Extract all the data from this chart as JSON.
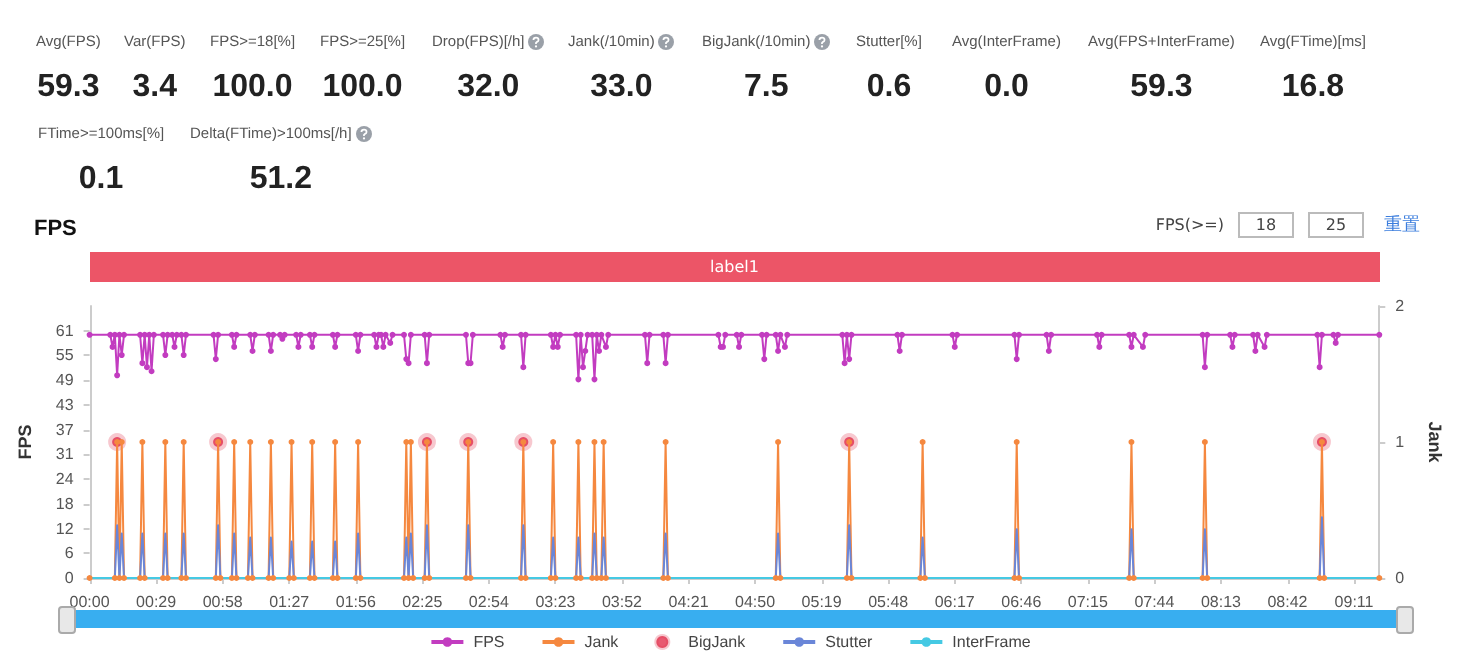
{
  "chart_data": [
    {
      "type": "other",
      "categories": [
        "Avg(FPS)",
        "Var(FPS)",
        "FPS>=18[%]",
        "FPS>=25[%]",
        "Drop(FPS)[/h]",
        "Jank(/10min)",
        "BigJank(/10min)",
        "Stutter[%]",
        "Avg(InterFrame)",
        "Avg(FPS+InterFrame)",
        "Avg(FTime)[ms]",
        "FTime>=100ms[%]",
        "Delta(FTime)>100ms[/h]"
      ],
      "values": [
        59.3,
        3.4,
        100,
        100,
        32,
        33,
        7.5,
        0.6,
        0,
        59.3,
        16.8,
        0.1,
        51.2
      ],
      "value_labels": [
        "59.3",
        "3.4",
        "100.0",
        "100.0",
        "32.0",
        "33.0",
        "7.5",
        "0.6",
        "0.0",
        "59.3",
        "16.8",
        "0.1",
        "51.2"
      ]
    },
    {
      "type": "line",
      "title": "FPS",
      "ylabel": "FPS",
      "y2label": "Jank",
      "annotations": [
        "FPS(>=)",
        "18",
        "25",
        "重置",
        "label1"
      ],
      "xlim": [
        0,
        562
      ],
      "xticks": [
        {
          "value": 0,
          "label": "00:00"
        },
        {
          "value": 29,
          "label": "00:29"
        },
        {
          "value": 58,
          "label": "00:58"
        },
        {
          "value": 87,
          "label": "01:27"
        },
        {
          "value": 116,
          "label": "01:56"
        },
        {
          "value": 145,
          "label": "02:25"
        },
        {
          "value": 174,
          "label": "02:54"
        },
        {
          "value": 203,
          "label": "03:23"
        },
        {
          "value": 232,
          "label": "03:52"
        },
        {
          "value": 261,
          "label": "04:21"
        },
        {
          "value": 290,
          "label": "04:50"
        },
        {
          "value": 319,
          "label": "05:19"
        },
        {
          "value": 348,
          "label": "05:48"
        },
        {
          "value": 377,
          "label": "06:17"
        },
        {
          "value": 406,
          "label": "06:46"
        },
        {
          "value": 435,
          "label": "07:15"
        },
        {
          "value": 464,
          "label": "07:44"
        },
        {
          "value": 493,
          "label": "08:13"
        },
        {
          "value": 522,
          "label": "08:42"
        },
        {
          "value": 551,
          "label": "09:11"
        }
      ],
      "ylim": [
        0,
        67.1
      ],
      "yticks": [
        0,
        {
          "value": 6.1,
          "label": "6"
        },
        {
          "value": 12.2,
          "label": "12"
        },
        {
          "value": 18.3,
          "label": "18"
        },
        {
          "value": 24.4,
          "label": "24"
        },
        {
          "value": 30.5,
          "label": "31"
        },
        {
          "value": 36.6,
          "label": "37"
        },
        {
          "value": 42.7,
          "label": "43"
        },
        {
          "value": 48.8,
          "label": "49"
        },
        {
          "value": 54.9,
          "label": "55"
        },
        61
      ],
      "y2lim": [
        0,
        2
      ],
      "y2ticks": [
        0,
        1,
        2
      ],
      "grid": false,
      "legend": "bottom",
      "series": [
        {
          "name": "FPS",
          "color": "#c23cc0",
          "marker": "circle",
          "x": [
            0,
            9,
            10,
            11,
            12,
            13,
            14,
            15,
            22,
            23,
            24,
            25,
            26,
            27,
            28,
            32,
            33,
            34,
            36,
            37,
            38,
            40,
            41,
            42,
            54,
            55,
            56,
            62,
            63,
            64,
            70,
            71,
            72,
            78,
            79,
            80,
            83,
            84,
            85,
            90,
            91,
            92,
            96,
            97,
            98,
            106,
            107,
            108,
            116,
            117,
            118,
            124,
            125,
            126,
            127,
            128,
            129,
            131,
            132,
            137,
            138,
            139,
            140,
            146,
            147,
            148,
            164,
            165,
            166,
            167,
            179,
            180,
            181,
            188,
            189,
            190,
            201,
            202,
            203,
            204,
            205,
            212,
            213,
            214,
            215,
            216,
            217,
            219,
            220,
            221,
            222,
            223,
            225,
            226,
            242,
            243,
            244,
            250,
            251,
            252,
            274,
            275,
            276,
            277,
            282,
            283,
            284,
            293,
            294,
            295,
            299,
            300,
            301,
            303,
            304,
            328,
            329,
            330,
            331,
            332,
            352,
            353,
            354,
            376,
            377,
            378,
            403,
            404,
            405,
            417,
            418,
            419,
            439,
            440,
            441,
            453,
            454,
            455,
            459,
            460,
            485,
            486,
            487,
            497,
            498,
            499,
            507,
            508,
            509,
            512,
            513,
            535,
            536,
            537,
            542,
            543,
            544,
            562
          ],
          "values": [
            60,
            60,
            57,
            60,
            50,
            60,
            55,
            60,
            60,
            53,
            60,
            52,
            60,
            51,
            60,
            60,
            55,
            60,
            60,
            57,
            60,
            60,
            55,
            60,
            60,
            54,
            60,
            60,
            57,
            60,
            60,
            56,
            60,
            60,
            56,
            60,
            60,
            59,
            60,
            60,
            57,
            60,
            60,
            57,
            60,
            60,
            57,
            60,
            60,
            56,
            60,
            60,
            57,
            60,
            60,
            57,
            60,
            58,
            60,
            60,
            54,
            53,
            60,
            60,
            53,
            60,
            60,
            53,
            53,
            60,
            60,
            57,
            60,
            60,
            52,
            60,
            60,
            57,
            60,
            57,
            60,
            60,
            49,
            60,
            52,
            56,
            60,
            60,
            49,
            60,
            56,
            60,
            57,
            60,
            60,
            53,
            60,
            60,
            53,
            60,
            60,
            57,
            57,
            60,
            60,
            57,
            60,
            60,
            54,
            60,
            60,
            56,
            60,
            57,
            60,
            60,
            53,
            60,
            54,
            60,
            60,
            56,
            60,
            60,
            57,
            60,
            60,
            54,
            60,
            60,
            56,
            60,
            60,
            57,
            60,
            60,
            57,
            60,
            57,
            60,
            60,
            52,
            60,
            60,
            57,
            60,
            60,
            56,
            60,
            57,
            60,
            60,
            52,
            60,
            60,
            58,
            60,
            60
          ]
        },
        {
          "name": "Jank",
          "color": "#f5883f",
          "marker": "circle",
          "axis": "y2",
          "x": [
            0,
            11,
            12,
            13,
            14,
            15,
            22,
            23,
            24,
            32,
            33,
            34,
            40,
            41,
            42,
            55,
            56,
            57,
            62,
            63,
            64,
            69,
            70,
            71,
            78,
            79,
            80,
            87,
            88,
            89,
            96,
            97,
            98,
            106,
            107,
            108,
            116,
            117,
            118,
            137,
            138,
            139,
            140,
            141,
            146,
            147,
            148,
            164,
            165,
            166,
            188,
            189,
            190,
            201,
            202,
            203,
            212,
            213,
            214,
            219,
            220,
            221,
            223,
            224,
            225,
            250,
            251,
            252,
            299,
            300,
            301,
            330,
            331,
            332,
            362,
            363,
            364,
            403,
            404,
            405,
            453,
            454,
            455,
            485,
            486,
            487,
            536,
            537,
            538,
            562
          ],
          "values": [
            0,
            0,
            1,
            0,
            1,
            0,
            0,
            1,
            0,
            0,
            1,
            0,
            0,
            1,
            0,
            0,
            1,
            0,
            0,
            1,
            0,
            0,
            1,
            0,
            0,
            1,
            0,
            0,
            1,
            0,
            0,
            1,
            0,
            0,
            1,
            0,
            0,
            1,
            0,
            0,
            1,
            0,
            1,
            0,
            0,
            1,
            0,
            0,
            1,
            0,
            0,
            1,
            0,
            0,
            1,
            0,
            0,
            1,
            0,
            0,
            1,
            0,
            0,
            1,
            0,
            0,
            1,
            0,
            0,
            1,
            0,
            0,
            1,
            0,
            0,
            1,
            0,
            0,
            1,
            0,
            0,
            1,
            0,
            0,
            1,
            0,
            0,
            1,
            0,
            0
          ]
        },
        {
          "name": "BigJank",
          "type": "scatter",
          "color": "#e22f4c",
          "axis": "y2",
          "x": [
            12,
            56,
            147,
            165,
            189,
            331,
            537
          ],
          "values": [
            1,
            1,
            1,
            1,
            1,
            1,
            1
          ]
        },
        {
          "name": "Stutter",
          "color": "#6a86d8",
          "marker": "none",
          "x": [
            0,
            11,
            12,
            13,
            14,
            15,
            22,
            23,
            24,
            32,
            33,
            34,
            40,
            41,
            42,
            55,
            56,
            57,
            62,
            63,
            64,
            69,
            70,
            71,
            78,
            79,
            80,
            87,
            88,
            89,
            96,
            97,
            98,
            106,
            107,
            108,
            116,
            117,
            118,
            137,
            138,
            139,
            140,
            141,
            146,
            147,
            148,
            164,
            165,
            166,
            188,
            189,
            190,
            201,
            202,
            203,
            212,
            213,
            214,
            219,
            220,
            221,
            223,
            224,
            225,
            250,
            251,
            252,
            299,
            300,
            301,
            330,
            331,
            332,
            362,
            363,
            364,
            403,
            404,
            405,
            453,
            454,
            455,
            485,
            486,
            487,
            536,
            537,
            538,
            562
          ],
          "values": [
            0,
            0,
            13,
            0,
            11,
            0,
            0,
            11,
            0,
            0,
            11,
            0,
            0,
            11,
            0,
            0,
            13,
            0,
            0,
            11,
            0,
            0,
            10,
            0,
            0,
            10,
            0,
            0,
            9,
            0,
            0,
            9,
            0,
            0,
            9,
            0,
            0,
            11,
            0,
            0,
            10,
            0,
            11,
            0,
            0,
            13,
            0,
            0,
            13,
            0,
            0,
            13,
            0,
            0,
            10,
            0,
            0,
            10,
            0,
            0,
            11,
            0,
            0,
            10,
            0,
            0,
            11,
            0,
            0,
            11,
            0,
            0,
            13,
            0,
            0,
            10,
            0,
            0,
            12,
            0,
            0,
            12,
            0,
            0,
            12,
            0,
            0,
            15,
            0,
            0
          ]
        },
        {
          "name": "InterFrame",
          "color": "#45c9e3",
          "marker": "none",
          "x": [
            0,
            562
          ],
          "values": [
            0,
            0
          ]
        }
      ]
    }
  ]
}
